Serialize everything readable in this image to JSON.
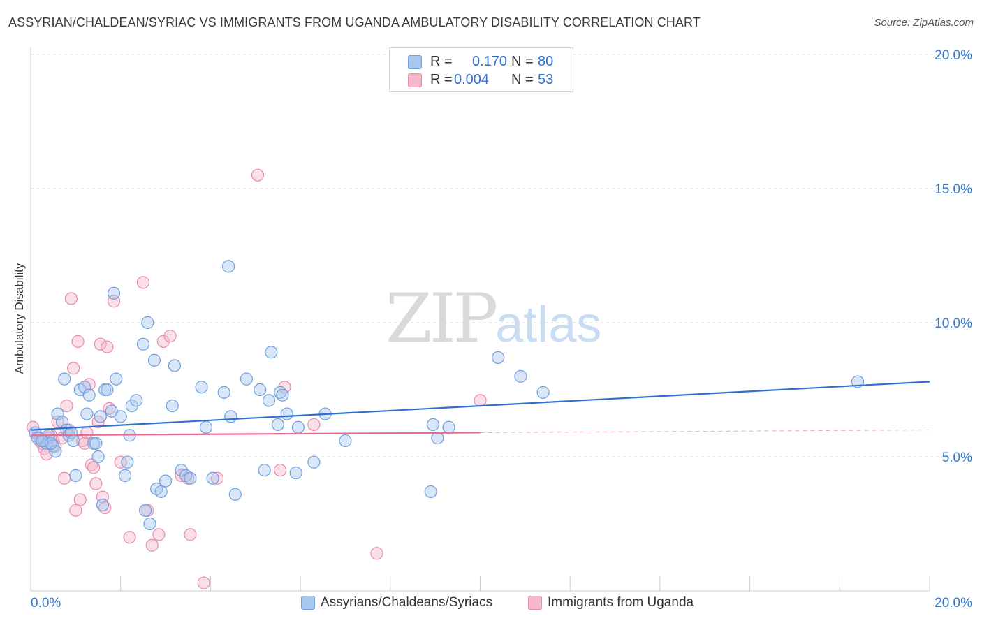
{
  "header": {
    "title": "ASSYRIAN/CHALDEAN/SYRIAC VS IMMIGRANTS FROM UGANDA AMBULATORY DISABILITY CORRELATION CHART",
    "source": "Source: ZipAtlas.com"
  },
  "watermark": {
    "zip": "ZIP",
    "atlas": "atlas"
  },
  "legend": {
    "rows": [
      {
        "r_label": "R =",
        "r_value": "0.170",
        "n_label": "N =",
        "n_value": "80",
        "color": "#a8c8f0"
      },
      {
        "r_label": "R =",
        "r_value": "0.004",
        "n_label": "N =",
        "n_value": "53",
        "color": "#f5b8cc"
      }
    ]
  },
  "colors": {
    "blue_fill": "#a8c8f0",
    "blue_stroke": "#6f9fdc",
    "blue_line": "#2e6fd0",
    "pink_fill": "#f5b8cc",
    "pink_stroke": "#e88aaa",
    "pink_line": "#e86a92",
    "grid": "#dcdcdc",
    "tick_label": "#3a78c8"
  },
  "chart_data": {
    "type": "scatter",
    "title": "ASSYRIAN/CHALDEAN/SYRIAC VS IMMIGRANTS FROM UGANDA AMBULATORY DISABILITY CORRELATION CHART",
    "xlabel": "",
    "ylabel": "Ambulatory Disability",
    "xlim": [
      0,
      20
    ],
    "ylim": [
      0,
      20
    ],
    "x_tick_labels": [
      "0.0%",
      "20.0%"
    ],
    "y_tick_labels": [
      "5.0%",
      "10.0%",
      "15.0%",
      "20.0%"
    ],
    "y_ticks": [
      5,
      10,
      15,
      20
    ],
    "grid": true,
    "legend_position": "top-center",
    "series": [
      {
        "name": "Assyrians/Chaldeans/Syriacs",
        "trend": {
          "x": [
            0,
            20
          ],
          "y": [
            6.0,
            7.8
          ]
        },
        "points": [
          [
            0.1,
            5.9
          ],
          [
            0.2,
            5.7
          ],
          [
            0.3,
            5.6
          ],
          [
            0.35,
            5.5
          ],
          [
            0.4,
            5.8
          ],
          [
            0.5,
            5.4
          ],
          [
            0.55,
            5.2
          ],
          [
            0.6,
            6.6
          ],
          [
            0.7,
            6.3
          ],
          [
            0.75,
            7.9
          ],
          [
            0.8,
            6.0
          ],
          [
            0.85,
            5.8
          ],
          [
            0.9,
            5.9
          ],
          [
            0.95,
            5.6
          ],
          [
            1.0,
            4.3
          ],
          [
            1.1,
            7.5
          ],
          [
            1.2,
            7.6
          ],
          [
            1.25,
            6.6
          ],
          [
            1.3,
            7.3
          ],
          [
            1.4,
            5.5
          ],
          [
            1.45,
            5.5
          ],
          [
            1.5,
            5.0
          ],
          [
            1.55,
            6.5
          ],
          [
            1.6,
            3.2
          ],
          [
            1.65,
            7.5
          ],
          [
            1.7,
            7.5
          ],
          [
            1.8,
            6.7
          ],
          [
            1.85,
            11.1
          ],
          [
            1.9,
            7.9
          ],
          [
            2.0,
            6.5
          ],
          [
            2.1,
            4.3
          ],
          [
            2.15,
            4.8
          ],
          [
            2.2,
            5.8
          ],
          [
            2.25,
            6.9
          ],
          [
            2.35,
            7.1
          ],
          [
            2.5,
            9.2
          ],
          [
            2.55,
            3.0
          ],
          [
            2.6,
            10.0
          ],
          [
            2.65,
            2.5
          ],
          [
            2.75,
            8.6
          ],
          [
            2.8,
            3.8
          ],
          [
            2.9,
            3.7
          ],
          [
            3.0,
            4.1
          ],
          [
            3.15,
            6.9
          ],
          [
            3.2,
            8.4
          ],
          [
            3.35,
            4.5
          ],
          [
            3.45,
            4.3
          ],
          [
            3.55,
            4.2
          ],
          [
            3.8,
            7.6
          ],
          [
            3.9,
            6.1
          ],
          [
            4.05,
            4.2
          ],
          [
            4.3,
            7.4
          ],
          [
            4.4,
            12.1
          ],
          [
            4.45,
            6.5
          ],
          [
            4.55,
            3.6
          ],
          [
            4.8,
            7.9
          ],
          [
            5.1,
            7.5
          ],
          [
            5.2,
            4.5
          ],
          [
            5.3,
            7.1
          ],
          [
            5.35,
            8.9
          ],
          [
            5.5,
            6.2
          ],
          [
            5.55,
            7.4
          ],
          [
            5.6,
            7.3
          ],
          [
            5.7,
            6.6
          ],
          [
            5.9,
            4.4
          ],
          [
            5.95,
            6.1
          ],
          [
            6.3,
            4.8
          ],
          [
            6.55,
            6.6
          ],
          [
            7.0,
            5.6
          ],
          [
            8.9,
            3.7
          ],
          [
            8.95,
            6.2
          ],
          [
            9.05,
            5.7
          ],
          [
            9.3,
            6.1
          ],
          [
            10.4,
            8.7
          ],
          [
            10.9,
            8.0
          ],
          [
            11.4,
            7.4
          ],
          [
            18.4,
            7.8
          ],
          [
            0.15,
            5.7
          ],
          [
            0.25,
            5.6
          ],
          [
            0.45,
            5.5
          ]
        ]
      },
      {
        "name": "Immigrants from Uganda",
        "trend": {
          "x": [
            0,
            10.0
          ],
          "y": [
            5.8,
            5.9
          ]
        },
        "trend_dashed": {
          "x": [
            10.0,
            20
          ],
          "y": [
            5.9,
            6.0
          ]
        },
        "points": [
          [
            0.05,
            6.1
          ],
          [
            0.1,
            5.9
          ],
          [
            0.2,
            5.6
          ],
          [
            0.25,
            5.5
          ],
          [
            0.3,
            5.3
          ],
          [
            0.35,
            5.1
          ],
          [
            0.4,
            5.7
          ],
          [
            0.45,
            5.8
          ],
          [
            0.5,
            5.6
          ],
          [
            0.55,
            5.4
          ],
          [
            0.6,
            6.3
          ],
          [
            0.7,
            5.7
          ],
          [
            0.75,
            4.2
          ],
          [
            0.8,
            6.9
          ],
          [
            0.85,
            6.0
          ],
          [
            0.9,
            10.9
          ],
          [
            0.95,
            8.3
          ],
          [
            1.0,
            3.0
          ],
          [
            1.05,
            9.3
          ],
          [
            1.1,
            3.4
          ],
          [
            1.15,
            5.6
          ],
          [
            1.2,
            5.5
          ],
          [
            1.25,
            5.9
          ],
          [
            1.3,
            7.7
          ],
          [
            1.35,
            4.7
          ],
          [
            1.4,
            4.6
          ],
          [
            1.45,
            4.0
          ],
          [
            1.5,
            6.3
          ],
          [
            1.55,
            9.2
          ],
          [
            1.6,
            3.5
          ],
          [
            1.65,
            3.1
          ],
          [
            1.7,
            9.1
          ],
          [
            1.75,
            6.8
          ],
          [
            1.85,
            10.8
          ],
          [
            2.0,
            4.8
          ],
          [
            2.2,
            2.0
          ],
          [
            2.5,
            11.5
          ],
          [
            2.6,
            3.0
          ],
          [
            2.7,
            1.7
          ],
          [
            2.85,
            2.1
          ],
          [
            2.95,
            9.3
          ],
          [
            3.1,
            9.5
          ],
          [
            3.35,
            4.3
          ],
          [
            3.5,
            4.2
          ],
          [
            3.55,
            2.1
          ],
          [
            3.85,
            0.3
          ],
          [
            4.15,
            4.2
          ],
          [
            5.05,
            15.5
          ],
          [
            5.55,
            4.5
          ],
          [
            5.65,
            7.6
          ],
          [
            6.3,
            6.2
          ],
          [
            7.7,
            1.4
          ],
          [
            10.0,
            7.1
          ]
        ]
      }
    ]
  },
  "bottom_legend": {
    "items": [
      {
        "label": "Assyrians/Chaldeans/Syriacs",
        "color": "#a8c8f0"
      },
      {
        "label": "Immigrants from Uganda",
        "color": "#f5b8cc"
      }
    ]
  }
}
